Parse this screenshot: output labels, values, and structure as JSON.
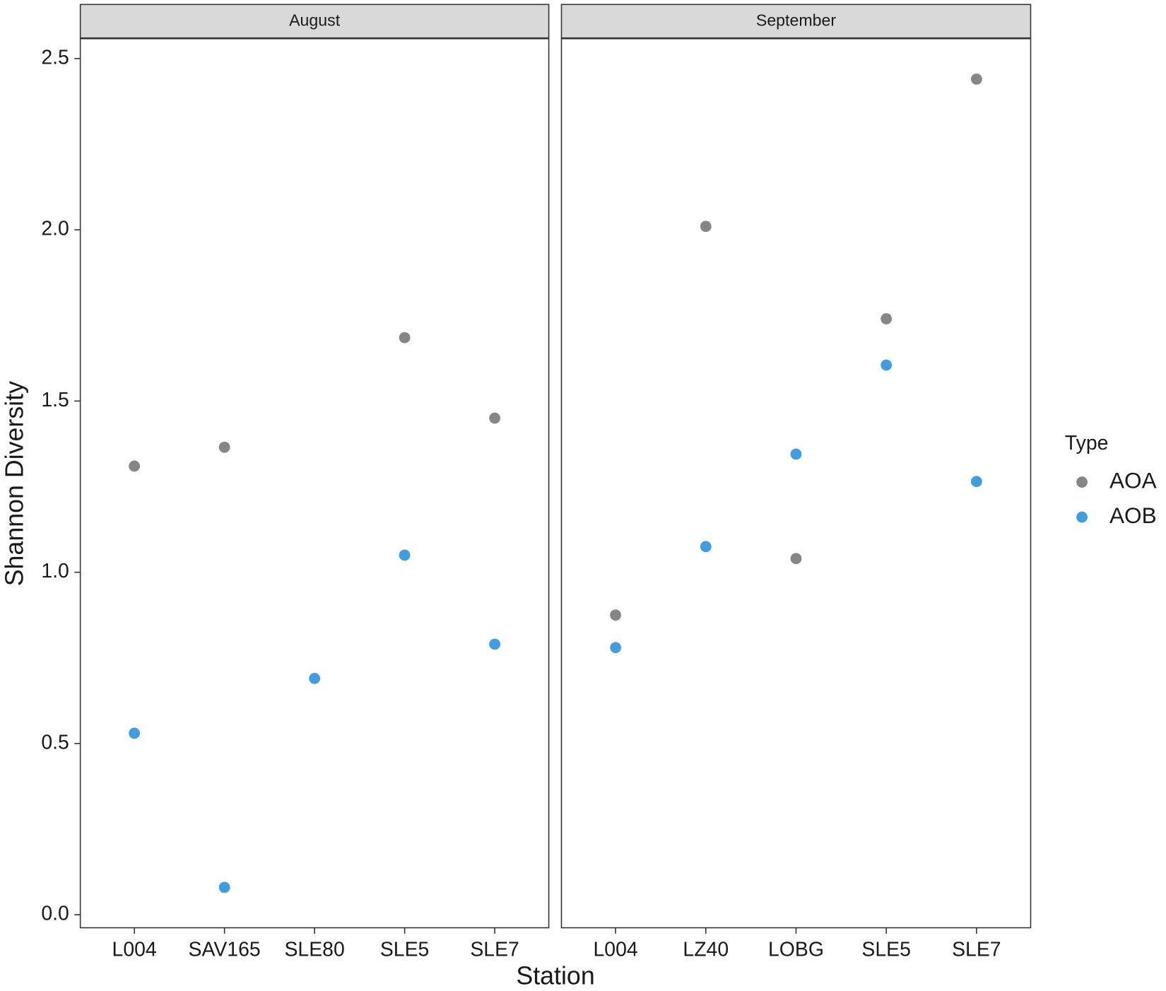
{
  "chart_data": {
    "type": "dot",
    "xlabel": "Station",
    "ylabel": "Shannon Diversity",
    "legend_title": "Type",
    "ylim": [
      -0.038,
      2.558
    ],
    "yticks": [
      {
        "value": 0,
        "label": "0.0"
      },
      0.5,
      {
        "value": 1,
        "label": "1.0"
      },
      1.5,
      {
        "value": 2,
        "label": "2.0"
      },
      2.5
    ],
    "legend": "right",
    "series": [
      {
        "name": "AOA",
        "color": "#868686"
      },
      {
        "name": "AOB",
        "color": "#3f9de0"
      }
    ],
    "facets": [
      {
        "title": "August",
        "categories": [
          "L004",
          "SAV165",
          "SLE80",
          "SLE5",
          "SLE7"
        ],
        "series": [
          {
            "values": [
              1.31,
              1.365,
              null,
              1.685,
              1.45
            ]
          },
          {
            "values": [
              0.53,
              0.08,
              0.69,
              1.05,
              0.79
            ]
          }
        ]
      },
      {
        "title": "September",
        "categories": [
          "L004",
          "LZ40",
          "LOBG",
          "SLE5",
          "SLE7"
        ],
        "series": [
          {
            "values": [
              0.875,
              2.01,
              1.04,
              1.74,
              2.44
            ]
          },
          {
            "values": [
              0.78,
              1.075,
              1.345,
              1.605,
              1.265
            ]
          }
        ]
      }
    ]
  }
}
